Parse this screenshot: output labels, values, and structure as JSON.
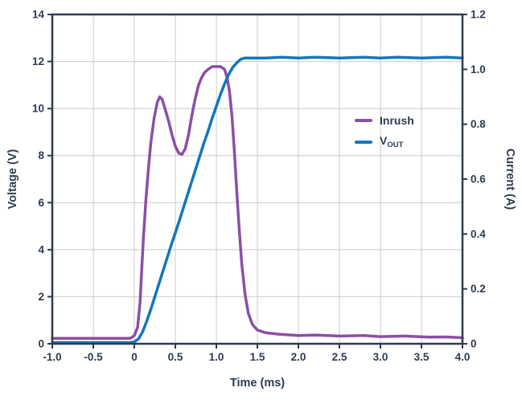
{
  "chart_data": {
    "type": "line",
    "title": "",
    "xlabel": "Time (ms)",
    "ylabel_left": "Voltage (V)",
    "ylabel_right": "Current (A)",
    "xlim": [
      -1.0,
      4.0
    ],
    "ylim_left": [
      0,
      14
    ],
    "ylim_right": [
      0,
      1.2
    ],
    "grid": true,
    "legend_position": "inside-right",
    "x_ticks": [
      -1.0,
      -0.5,
      0,
      0.5,
      1.0,
      1.5,
      2.0,
      2.5,
      3.0,
      3.5,
      4.0
    ],
    "x_tick_labels": [
      "-1.0",
      "-0.5",
      "0",
      "0.5",
      "1.0",
      "1.5",
      "2.0",
      "2.5",
      "3.0",
      "3.5",
      "4.0"
    ],
    "y_ticks_left": [
      0,
      2,
      4,
      6,
      8,
      10,
      12,
      14
    ],
    "y_tick_labels_left": [
      "0",
      "2",
      "4",
      "6",
      "8",
      "10",
      "12",
      "14"
    ],
    "y_ticks_right": [
      0,
      0.2,
      0.4,
      0.6,
      0.8,
      1.0,
      1.2
    ],
    "y_tick_labels_right": [
      "0",
      "0.2",
      "0.4",
      "0.6",
      "0.8",
      "1.0",
      "1.2"
    ],
    "colors": {
      "axis": "#2e3b52",
      "text": "#2e3b52",
      "grid": "#c9cbce",
      "inrush": "#8b4fa7",
      "vout": "#1476bd",
      "background": "#ffffff"
    },
    "legend": [
      {
        "label": "Inrush",
        "color": "#8b4fa7"
      },
      {
        "label_main": "V",
        "label_sub": "OUT",
        "color": "#1476bd"
      }
    ],
    "series": [
      {
        "name": "Inrush",
        "axis": "right",
        "unit": "A",
        "color": "#8b4fa7",
        "points": [
          [
            -1.0,
            0.02
          ],
          [
            -0.7,
            0.02
          ],
          [
            -0.4,
            0.02
          ],
          [
            -0.2,
            0.02
          ],
          [
            -0.05,
            0.02
          ],
          [
            0.0,
            0.03
          ],
          [
            0.04,
            0.06
          ],
          [
            0.07,
            0.15
          ],
          [
            0.09,
            0.27
          ],
          [
            0.11,
            0.38
          ],
          [
            0.14,
            0.52
          ],
          [
            0.17,
            0.63
          ],
          [
            0.2,
            0.73
          ],
          [
            0.24,
            0.82
          ],
          [
            0.28,
            0.88
          ],
          [
            0.31,
            0.9
          ],
          [
            0.34,
            0.89
          ],
          [
            0.38,
            0.85
          ],
          [
            0.42,
            0.81
          ],
          [
            0.46,
            0.76
          ],
          [
            0.5,
            0.72
          ],
          [
            0.54,
            0.695
          ],
          [
            0.58,
            0.69
          ],
          [
            0.62,
            0.71
          ],
          [
            0.66,
            0.76
          ],
          [
            0.7,
            0.83
          ],
          [
            0.74,
            0.89
          ],
          [
            0.78,
            0.94
          ],
          [
            0.82,
            0.97
          ],
          [
            0.86,
            0.99
          ],
          [
            0.9,
            1.0
          ],
          [
            0.95,
            1.01
          ],
          [
            1.0,
            1.01
          ],
          [
            1.05,
            1.01
          ],
          [
            1.1,
            1.0
          ],
          [
            1.13,
            0.97
          ],
          [
            1.16,
            0.92
          ],
          [
            1.19,
            0.83
          ],
          [
            1.22,
            0.7
          ],
          [
            1.25,
            0.55
          ],
          [
            1.28,
            0.41
          ],
          [
            1.31,
            0.29
          ],
          [
            1.35,
            0.18
          ],
          [
            1.39,
            0.11
          ],
          [
            1.44,
            0.07
          ],
          [
            1.5,
            0.05
          ],
          [
            1.6,
            0.04
          ],
          [
            1.75,
            0.035
          ],
          [
            2.0,
            0.03
          ],
          [
            2.2,
            0.032
          ],
          [
            2.5,
            0.028
          ],
          [
            2.8,
            0.03
          ],
          [
            3.0,
            0.026
          ],
          [
            3.3,
            0.028
          ],
          [
            3.6,
            0.024
          ],
          [
            3.8,
            0.025
          ],
          [
            4.0,
            0.022
          ]
        ]
      },
      {
        "name": "VOUT",
        "axis": "left",
        "unit": "V",
        "color": "#1476bd",
        "points": [
          [
            -1.0,
            0.05
          ],
          [
            -0.6,
            0.05
          ],
          [
            -0.3,
            0.05
          ],
          [
            -0.05,
            0.05
          ],
          [
            0.0,
            0.08
          ],
          [
            0.05,
            0.2
          ],
          [
            0.1,
            0.5
          ],
          [
            0.15,
            0.95
          ],
          [
            0.2,
            1.45
          ],
          [
            0.25,
            2.0
          ],
          [
            0.3,
            2.55
          ],
          [
            0.35,
            3.1
          ],
          [
            0.4,
            3.65
          ],
          [
            0.45,
            4.2
          ],
          [
            0.5,
            4.72
          ],
          [
            0.55,
            5.25
          ],
          [
            0.6,
            5.8
          ],
          [
            0.65,
            6.35
          ],
          [
            0.7,
            6.9
          ],
          [
            0.75,
            7.45
          ],
          [
            0.8,
            8.0
          ],
          [
            0.85,
            8.55
          ],
          [
            0.9,
            9.05
          ],
          [
            0.95,
            9.6
          ],
          [
            1.0,
            10.1
          ],
          [
            1.05,
            10.6
          ],
          [
            1.1,
            11.05
          ],
          [
            1.15,
            11.45
          ],
          [
            1.2,
            11.75
          ],
          [
            1.25,
            11.95
          ],
          [
            1.3,
            12.1
          ],
          [
            1.35,
            12.15
          ],
          [
            1.45,
            12.15
          ],
          [
            1.6,
            12.15
          ],
          [
            1.8,
            12.18
          ],
          [
            2.0,
            12.15
          ],
          [
            2.2,
            12.18
          ],
          [
            2.5,
            12.15
          ],
          [
            2.8,
            12.18
          ],
          [
            3.0,
            12.15
          ],
          [
            3.2,
            12.18
          ],
          [
            3.5,
            12.15
          ],
          [
            3.8,
            12.18
          ],
          [
            4.0,
            12.15
          ]
        ]
      }
    ]
  }
}
